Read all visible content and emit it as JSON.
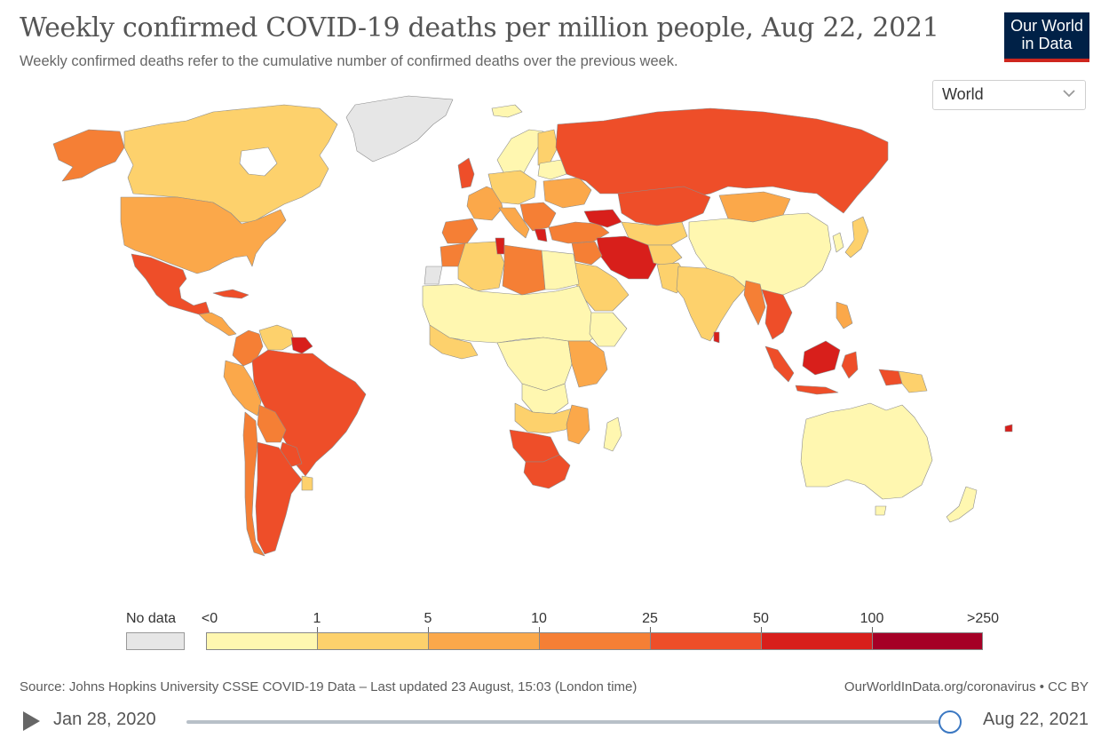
{
  "header": {
    "title": "Weekly confirmed COVID-19 deaths per million people, Aug 22, 2021",
    "subtitle": "Weekly confirmed deaths refer to the cumulative number of confirmed deaths over the previous week."
  },
  "logo": {
    "line1": "Our World",
    "line2": "in Data",
    "bg": "#002147",
    "accent": "#ce261e"
  },
  "region_select": {
    "value": "World",
    "icon": "chevron-down-icon"
  },
  "legend": {
    "no_data_label": "No data",
    "no_data_color": "#e6e6e6",
    "bins": [
      {
        "label": "<0",
        "color": "#fff7b0"
      },
      {
        "label": "1",
        "color": "#fdd16c"
      },
      {
        "label": "5",
        "color": "#fba84a"
      },
      {
        "label": "10",
        "color": "#f57f35"
      },
      {
        "label": "25",
        "color": "#ee4e29"
      },
      {
        "label": "50",
        "color": "#d81f1b"
      },
      {
        "label": "100",
        "color": "#a50026"
      },
      {
        "label": ">250",
        "color": null
      }
    ]
  },
  "footer": {
    "source": "Source: Johns Hopkins University CSSE COVID-19 Data – Last updated 23 August, 15:03 (London time)",
    "site": "OurWorldInData.org/coronavirus • CC BY"
  },
  "timeline": {
    "start": "Jan 28, 2020",
    "end": "Aug 22, 2021",
    "progress": 1.0,
    "play_icon": "play-icon"
  },
  "map_colors": {
    "ocean": "#ffffff",
    "border": "#8c8c8c",
    "no_data": "#e6e6e6"
  }
}
